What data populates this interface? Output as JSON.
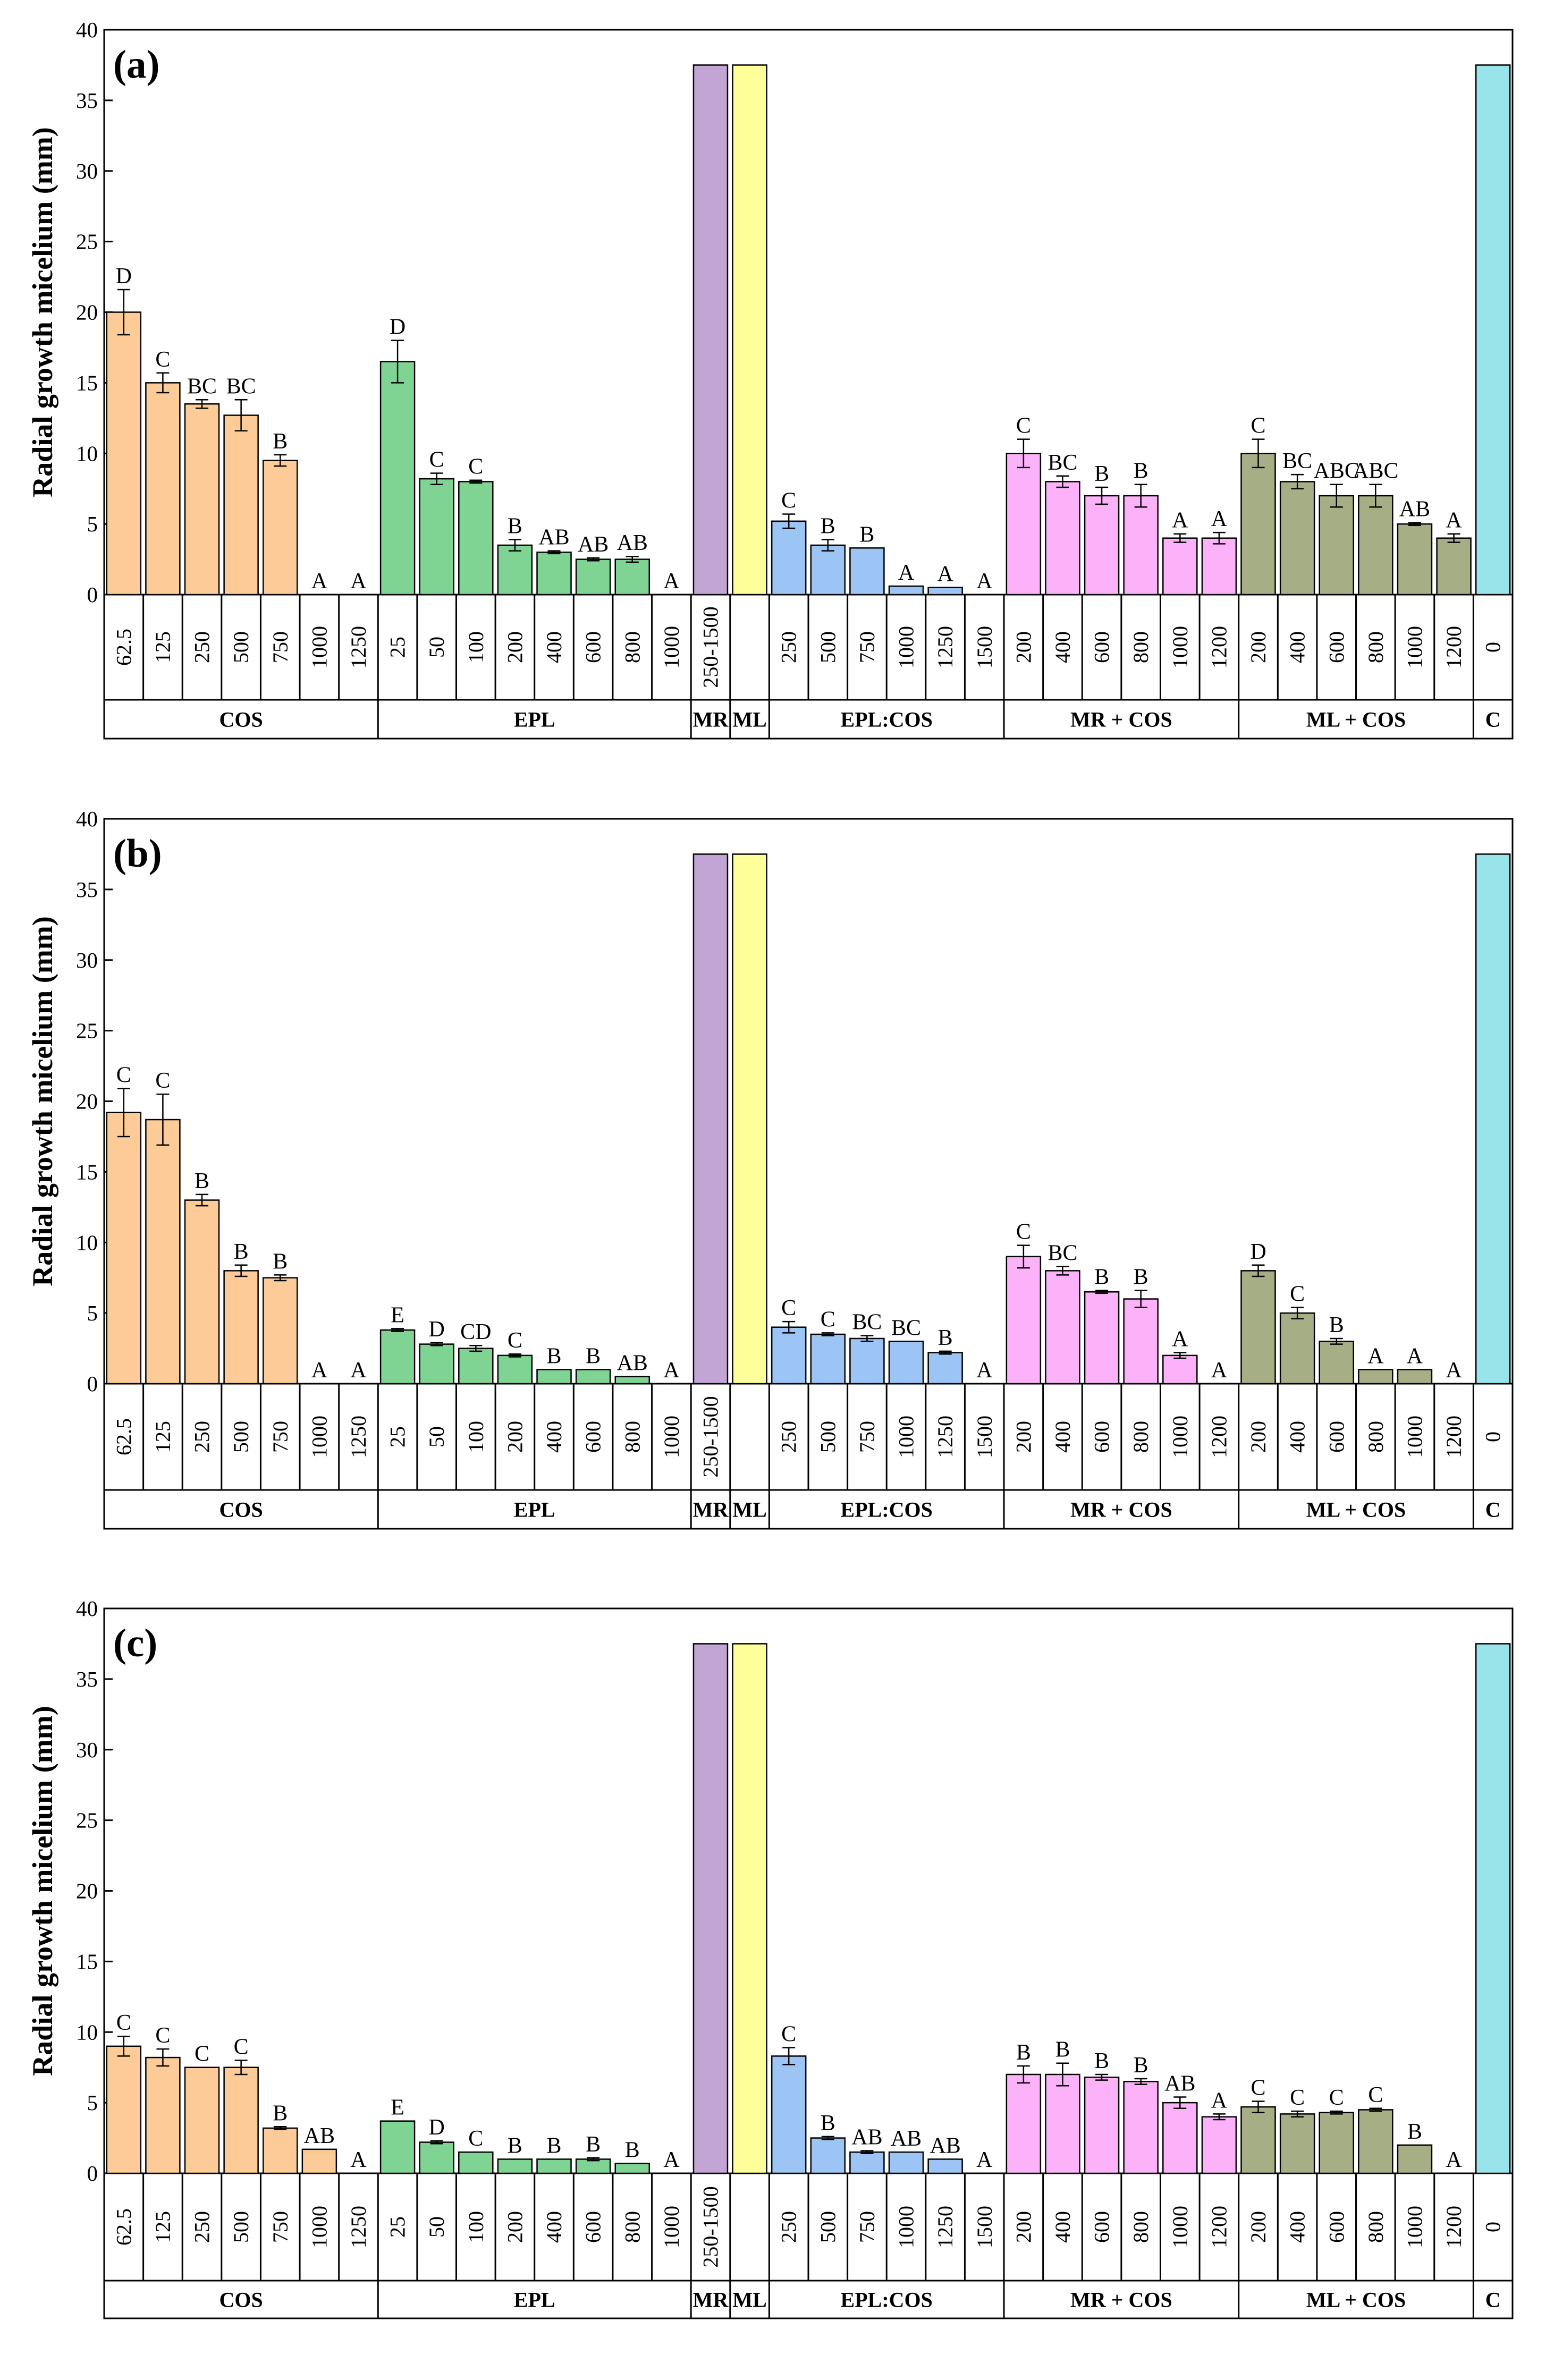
{
  "chart_data": [
    {
      "type": "bar",
      "panel_label": "(a)",
      "ylabel": "Radial growth micelium (mm)",
      "ylim": [
        0,
        40
      ],
      "yticks": [
        "0",
        "5",
        "10",
        "15",
        "20",
        "25",
        "30",
        "35",
        "40"
      ],
      "groups": [
        {
          "name": "COS",
          "color": "#FCCB97",
          "categories": [
            "62.5",
            "125",
            "250",
            "500",
            "750",
            "1000",
            "1250"
          ],
          "values": [
            20,
            15,
            13.5,
            12.7,
            9.5,
            0,
            0
          ],
          "errors": [
            1.6,
            0.7,
            0.3,
            1.1,
            0.4,
            0,
            0
          ],
          "letters": [
            "D",
            "C",
            "BC",
            "BC",
            "B",
            "A",
            "A"
          ]
        },
        {
          "name": "EPL",
          "color": "#7FD393",
          "categories": [
            "25",
            "50",
            "100",
            "200",
            "400",
            "600",
            "800",
            "1000"
          ],
          "values": [
            16.5,
            8.2,
            8,
            3.5,
            3,
            2.5,
            2.5,
            0
          ],
          "errors": [
            1.5,
            0.4,
            0.1,
            0.4,
            0.1,
            0.1,
            0.2,
            0
          ],
          "letters": [
            "D",
            "C",
            "C",
            "B",
            "AB",
            "AB",
            "AB",
            "A"
          ]
        },
        {
          "name": "MR",
          "color": "#C2A5D5",
          "categories": [
            "250-1500"
          ],
          "values": [
            37.5
          ],
          "errors": [
            0
          ],
          "letters": [
            ""
          ]
        },
        {
          "name": "ML",
          "color": "#FFFF99",
          "categories": [
            ""
          ],
          "values": [
            37.5
          ],
          "errors": [
            0
          ],
          "letters": [
            ""
          ]
        },
        {
          "name": "EPL:COS",
          "color": "#9CC5F5",
          "categories": [
            "250",
            "500",
            "750",
            "1000",
            "1250",
            "1500"
          ],
          "values": [
            5.2,
            3.5,
            3.3,
            0.6,
            0.5,
            0
          ],
          "errors": [
            0.5,
            0.4,
            0,
            0,
            0,
            0
          ],
          "letters": [
            "C",
            "B",
            "B",
            "A",
            "A",
            "A"
          ]
        },
        {
          "name": "MR + COS",
          "color": "#FBB2F9",
          "categories": [
            "200",
            "400",
            "600",
            "800",
            "1000",
            "1200"
          ],
          "values": [
            10,
            8,
            7,
            7,
            4,
            4
          ],
          "errors": [
            1,
            0.4,
            0.6,
            0.8,
            0.3,
            0.4
          ],
          "letters": [
            "C",
            "BC",
            "B",
            "B",
            "A",
            "A"
          ]
        },
        {
          "name": "ML + COS",
          "color": "#A5AE84",
          "categories": [
            "200",
            "400",
            "600",
            "800",
            "1000",
            "1200"
          ],
          "values": [
            10,
            8,
            7,
            7,
            5,
            4
          ],
          "errors": [
            1,
            0.5,
            0.8,
            0.8,
            0.1,
            0.3
          ],
          "letters": [
            "C",
            "BC",
            "ABC",
            "ABC",
            "AB",
            "A"
          ]
        },
        {
          "name": "C",
          "color": "#99E3EB",
          "categories": [
            "0"
          ],
          "values": [
            37.5
          ],
          "errors": [
            0
          ],
          "letters": [
            ""
          ]
        }
      ]
    },
    {
      "type": "bar",
      "panel_label": "(b)",
      "ylabel": "Radial growth micelium (mm)",
      "ylim": [
        0,
        40
      ],
      "yticks": [
        "0",
        "5",
        "10",
        "15",
        "20",
        "25",
        "30",
        "35",
        "40"
      ],
      "groups": [
        {
          "name": "COS",
          "color": "#FCCB97",
          "categories": [
            "62.5",
            "125",
            "250",
            "500",
            "750",
            "1000",
            "1250"
          ],
          "values": [
            19.2,
            18.7,
            13,
            8,
            7.5,
            0,
            0
          ],
          "errors": [
            1.7,
            1.8,
            0.4,
            0.4,
            0.2,
            0,
            0
          ],
          "letters": [
            "C",
            "C",
            "B",
            "B",
            "B",
            "A",
            "A"
          ]
        },
        {
          "name": "EPL",
          "color": "#7FD393",
          "categories": [
            "25",
            "50",
            "100",
            "200",
            "400",
            "600",
            "800",
            "1000"
          ],
          "values": [
            3.8,
            2.8,
            2.5,
            2,
            1,
            1,
            0.5,
            0
          ],
          "errors": [
            0.1,
            0.1,
            0.2,
            0.1,
            0,
            0,
            0,
            0
          ],
          "letters": [
            "E",
            "D",
            "CD",
            "C",
            "B",
            "B",
            "AB",
            "A"
          ]
        },
        {
          "name": "MR",
          "color": "#C2A5D5",
          "categories": [
            "250-1500"
          ],
          "values": [
            37.5
          ],
          "errors": [
            0
          ],
          "letters": [
            ""
          ]
        },
        {
          "name": "ML",
          "color": "#FFFF99",
          "categories": [
            ""
          ],
          "values": [
            37.5
          ],
          "errors": [
            0
          ],
          "letters": [
            ""
          ]
        },
        {
          "name": "EPL:COS",
          "color": "#9CC5F5",
          "categories": [
            "250",
            "500",
            "750",
            "1000",
            "1250",
            "1500"
          ],
          "values": [
            4,
            3.5,
            3.2,
            3,
            2.2,
            0
          ],
          "errors": [
            0.4,
            0.1,
            0.2,
            0,
            0.1,
            0
          ],
          "letters": [
            "C",
            "C",
            "BC",
            "BC",
            "B",
            "A"
          ]
        },
        {
          "name": "MR + COS",
          "color": "#FBB2F9",
          "categories": [
            "200",
            "400",
            "600",
            "800",
            "1000",
            "1200"
          ],
          "values": [
            9,
            8,
            6.5,
            6,
            2,
            0
          ],
          "errors": [
            0.8,
            0.3,
            0.1,
            0.6,
            0.2,
            0
          ],
          "letters": [
            "C",
            "BC",
            "B",
            "B",
            "A",
            "A"
          ]
        },
        {
          "name": "ML + COS",
          "color": "#A5AE84",
          "categories": [
            "200",
            "400",
            "600",
            "800",
            "1000",
            "1200"
          ],
          "values": [
            8,
            5,
            3,
            1,
            1,
            0
          ],
          "errors": [
            0.4,
            0.4,
            0.2,
            0,
            0,
            0
          ],
          "letters": [
            "D",
            "C",
            "B",
            "A",
            "A",
            "A"
          ]
        },
        {
          "name": "C",
          "color": "#99E3EB",
          "categories": [
            "0"
          ],
          "values": [
            37.5
          ],
          "errors": [
            0
          ],
          "letters": [
            ""
          ]
        }
      ]
    },
    {
      "type": "bar",
      "panel_label": "(c)",
      "ylabel": "Radial growth micelium (mm)",
      "ylim": [
        0,
        40
      ],
      "yticks": [
        "0",
        "5",
        "10",
        "15",
        "20",
        "25",
        "30",
        "35",
        "40"
      ],
      "groups": [
        {
          "name": "COS",
          "color": "#FCCB97",
          "categories": [
            "62.5",
            "125",
            "250",
            "500",
            "750",
            "1000",
            "1250"
          ],
          "values": [
            9,
            8.2,
            7.5,
            7.5,
            3.2,
            1.7,
            0
          ],
          "errors": [
            0.7,
            0.6,
            0,
            0.5,
            0.1,
            0,
            0
          ],
          "letters": [
            "C",
            "C",
            "C",
            "C",
            "B",
            "AB",
            "A"
          ]
        },
        {
          "name": "EPL",
          "color": "#7FD393",
          "categories": [
            "25",
            "50",
            "100",
            "200",
            "400",
            "600",
            "800",
            "1000"
          ],
          "values": [
            3.7,
            2.2,
            1.5,
            1,
            1,
            1,
            0.7,
            0
          ],
          "errors": [
            0,
            0.1,
            0,
            0,
            0,
            0.1,
            0,
            0
          ],
          "letters": [
            "E",
            "D",
            "C",
            "B",
            "B",
            "B",
            "B",
            "A"
          ]
        },
        {
          "name": "MR",
          "color": "#C2A5D5",
          "categories": [
            "250-1500"
          ],
          "values": [
            37.5
          ],
          "errors": [
            0
          ],
          "letters": [
            ""
          ]
        },
        {
          "name": "ML",
          "color": "#FFFF99",
          "categories": [
            ""
          ],
          "values": [
            37.5
          ],
          "errors": [
            0
          ],
          "letters": [
            ""
          ]
        },
        {
          "name": "EPL:COS",
          "color": "#9CC5F5",
          "categories": [
            "250",
            "500",
            "750",
            "1000",
            "1250",
            "1500"
          ],
          "values": [
            8.3,
            2.5,
            1.5,
            1.5,
            1,
            0
          ],
          "errors": [
            0.6,
            0.1,
            0.1,
            0,
            0,
            0
          ],
          "letters": [
            "C",
            "B",
            "AB",
            "AB",
            "AB",
            "A"
          ]
        },
        {
          "name": "MR + COS",
          "color": "#FBB2F9",
          "categories": [
            "200",
            "400",
            "600",
            "800",
            "1000",
            "1200"
          ],
          "values": [
            7,
            7,
            6.8,
            6.5,
            5,
            4
          ],
          "errors": [
            0.6,
            0.8,
            0.2,
            0.2,
            0.4,
            0.2
          ],
          "letters": [
            "B",
            "B",
            "B",
            "B",
            "AB",
            "A"
          ]
        },
        {
          "name": "ML + COS",
          "color": "#A5AE84",
          "categories": [
            "200",
            "400",
            "600",
            "800",
            "1000",
            "1200"
          ],
          "values": [
            4.7,
            4.2,
            4.3,
            4.5,
            2,
            0
          ],
          "errors": [
            0.4,
            0.2,
            0.1,
            0.1,
            0,
            0
          ],
          "letters": [
            "C",
            "C",
            "C",
            "C",
            "B",
            "A"
          ]
        },
        {
          "name": "C",
          "color": "#99E3EB",
          "categories": [
            "0"
          ],
          "values": [
            37.5
          ],
          "errors": [
            0
          ],
          "letters": [
            ""
          ]
        }
      ]
    }
  ]
}
